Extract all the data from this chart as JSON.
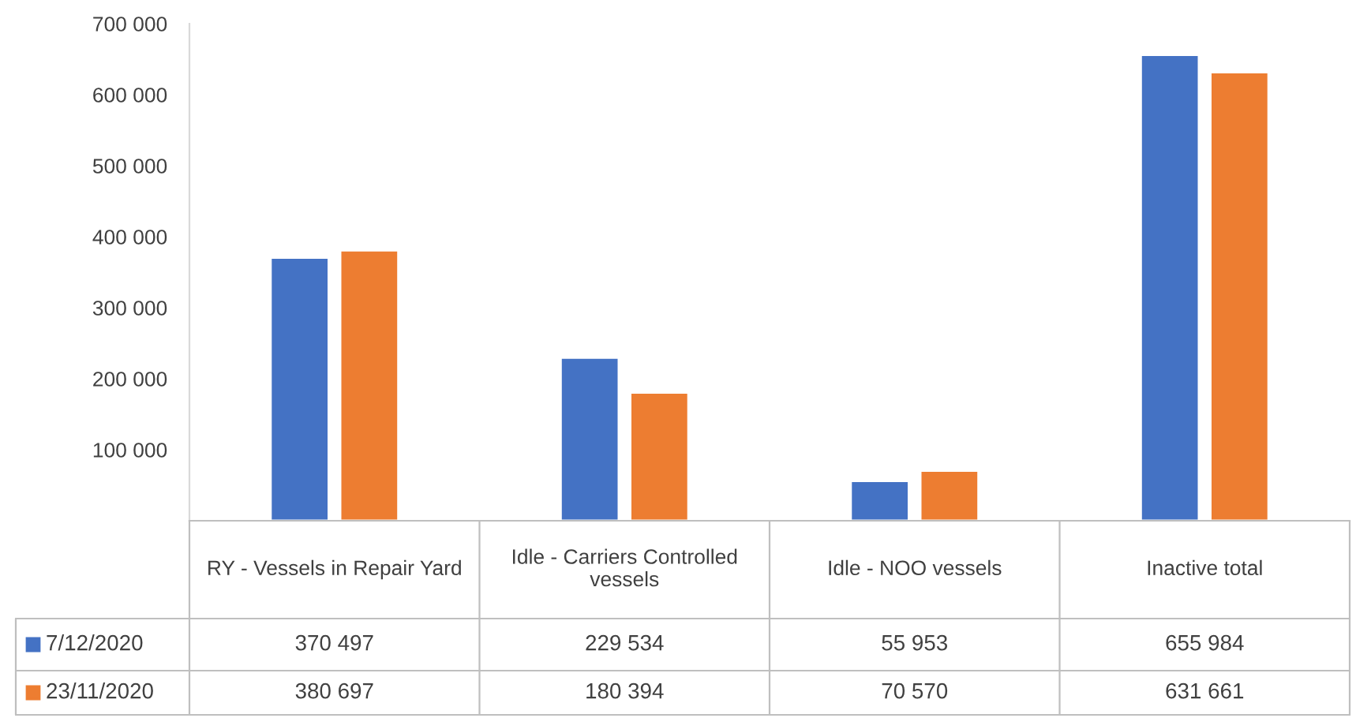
{
  "chart_data": {
    "type": "bar",
    "categories": [
      "RY - Vessels in Repair Yard",
      "Idle - Carriers Controlled vessels",
      "Idle - NOO vessels",
      "Inactive total"
    ],
    "series": [
      {
        "name": "7/12/2020",
        "color": "#4472c4",
        "values": [
          370497,
          229534,
          55953,
          655984
        ],
        "value_labels": [
          "370 497",
          "229 534",
          "55 953",
          "655 984"
        ]
      },
      {
        "name": "23/11/2020",
        "color": "#ed7d31",
        "values": [
          380697,
          180394,
          70570,
          631661
        ],
        "value_labels": [
          "380 697",
          "180 394",
          "70 570",
          "631 661"
        ]
      }
    ],
    "ylim": [
      0,
      700000
    ],
    "yticks": [
      {
        "value": 100000,
        "label": "100 000"
      },
      {
        "value": 200000,
        "label": "200 000"
      },
      {
        "value": 300000,
        "label": "300 000"
      },
      {
        "value": 400000,
        "label": "400 000"
      },
      {
        "value": 500000,
        "label": "500 000"
      },
      {
        "value": 600000,
        "label": "600 000"
      },
      {
        "value": 700000,
        "label": "700 000"
      }
    ],
    "grid": false,
    "legend": "bottom left"
  }
}
